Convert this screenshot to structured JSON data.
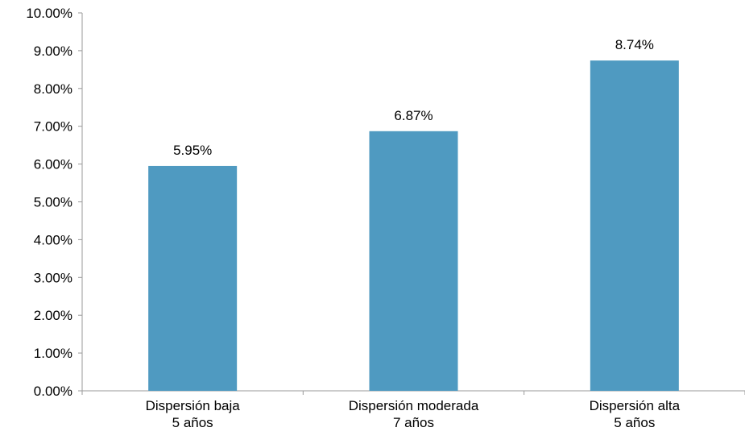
{
  "chart_data": {
    "type": "bar",
    "title": "",
    "xlabel": "",
    "ylabel": "",
    "categories": [
      [
        "Dispersión baja",
        "5 años"
      ],
      [
        "Dispersión moderada",
        "7 años"
      ],
      [
        "Dispersión alta",
        "5 años"
      ]
    ],
    "values": [
      5.95,
      6.87,
      8.74
    ],
    "data_labels": [
      "5.95%",
      "6.87%",
      "8.74%"
    ],
    "ylim": [
      0,
      10
    ],
    "y_ticks": [
      0,
      1,
      2,
      3,
      4,
      5,
      6,
      7,
      8,
      9,
      10
    ],
    "y_tick_labels": [
      "0.00%",
      "1.00%",
      "2.00%",
      "3.00%",
      "4.00%",
      "5.00%",
      "6.00%",
      "7.00%",
      "8.00%",
      "9.00%",
      "10.00%"
    ],
    "grid": false,
    "legend": "none",
    "bar_color": "#4F9AC1",
    "axis_color": "#9A9A9A"
  }
}
